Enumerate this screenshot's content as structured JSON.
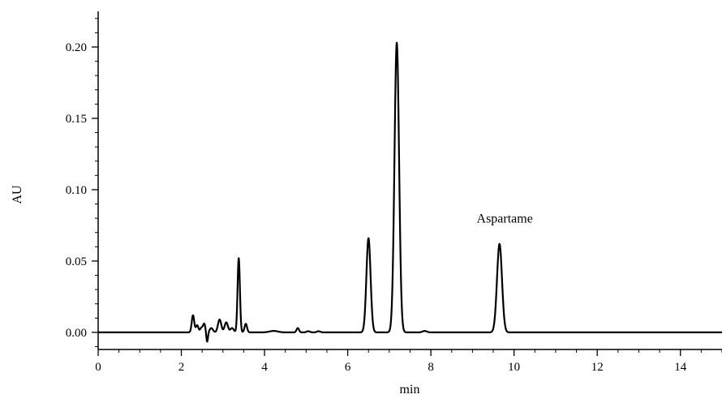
{
  "chart_data": {
    "type": "line",
    "title": "",
    "xlabel": "min",
    "ylabel": "AU",
    "xlim": [
      0,
      15
    ],
    "ylim": [
      -0.012,
      0.225
    ],
    "x_ticks": [
      0,
      2,
      4,
      6,
      8,
      10,
      12,
      14
    ],
    "x_tick_labels": [
      "0",
      "2",
      "4",
      "6",
      "8",
      "10",
      "12",
      "14"
    ],
    "y_ticks": [
      0.0,
      0.05,
      0.1,
      0.15,
      0.2
    ],
    "y_tick_labels": [
      "0.00",
      "0.05",
      "0.10",
      "0.15",
      "0.20"
    ],
    "grid": false,
    "legend": "none",
    "line_color": "#000000",
    "baseline": 0.0,
    "peaks": [
      {
        "time": 2.28,
        "height": 0.012,
        "width": 0.03
      },
      {
        "time": 2.38,
        "height": 0.005,
        "width": 0.03
      },
      {
        "time": 2.48,
        "height": 0.003,
        "width": 0.03
      },
      {
        "time": 2.55,
        "height": 0.006,
        "width": 0.03
      },
      {
        "time": 2.62,
        "height": -0.007,
        "width": 0.02
      },
      {
        "time": 2.72,
        "height": 0.003,
        "width": 0.04
      },
      {
        "time": 2.92,
        "height": 0.009,
        "width": 0.04
      },
      {
        "time": 3.08,
        "height": 0.007,
        "width": 0.04
      },
      {
        "time": 3.22,
        "height": 0.003,
        "width": 0.04
      },
      {
        "time": 3.38,
        "height": 0.052,
        "width": 0.028
      },
      {
        "time": 3.55,
        "height": 0.006,
        "width": 0.03
      },
      {
        "time": 4.22,
        "height": 0.001,
        "width": 0.1
      },
      {
        "time": 4.8,
        "height": 0.003,
        "width": 0.03
      },
      {
        "time": 5.05,
        "height": 0.0008,
        "width": 0.04
      },
      {
        "time": 5.3,
        "height": 0.0008,
        "width": 0.04
      },
      {
        "time": 6.5,
        "height": 0.066,
        "width": 0.05
      },
      {
        "time": 7.18,
        "height": 0.203,
        "width": 0.055
      },
      {
        "time": 7.85,
        "height": 0.001,
        "width": 0.05
      },
      {
        "time": 9.65,
        "height": 0.062,
        "width": 0.06
      }
    ],
    "annotations": [
      {
        "text": "Aspartame",
        "x": 9.1,
        "y": 0.077
      }
    ]
  }
}
